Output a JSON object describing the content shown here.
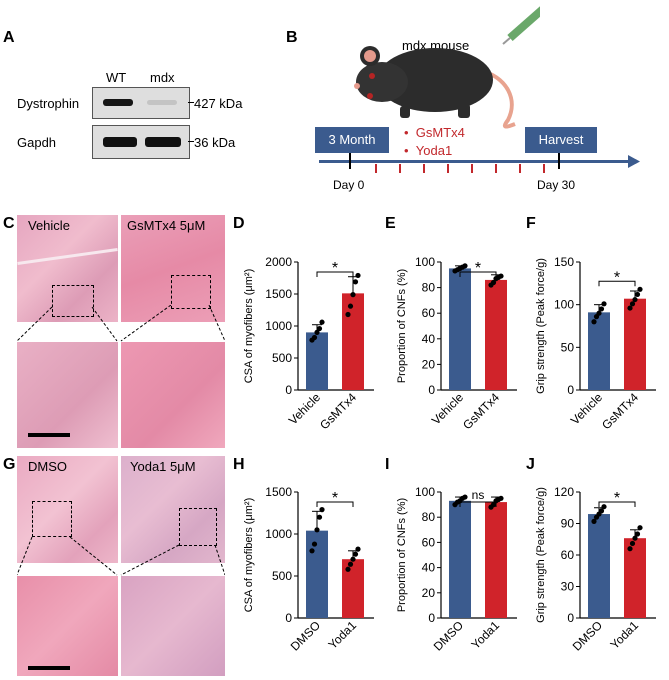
{
  "panels": {
    "A": "A",
    "B": "B",
    "C": "C",
    "D": "D",
    "E": "E",
    "F": "F",
    "G": "G",
    "H": "H",
    "I": "I",
    "J": "J"
  },
  "blot": {
    "lanes": [
      "WT",
      "mdx"
    ],
    "rows": [
      {
        "protein": "Dystrophin",
        "size": "427 kDa"
      },
      {
        "protein": "Gapdh",
        "size": "36 kDa"
      }
    ]
  },
  "schematic": {
    "mouse_label": "mdx mouse",
    "start": "3 Month",
    "end": "Harvest",
    "drugs": [
      "GsMTx4",
      "Yoda1"
    ],
    "day_start": "Day 0",
    "day_end": "Day 30"
  },
  "histology": {
    "C": {
      "left": "Vehicle",
      "right": "GsMTx4 5μM"
    },
    "G": {
      "left": "DMSO",
      "right": "Yoda1 5μM"
    }
  },
  "colors": {
    "control": "#3b5b8e",
    "treated": "#d0232a",
    "timeline": "#3b5b8e",
    "drug_text": "#c2282c"
  },
  "chart_data": [
    {
      "id": "D",
      "type": "bar",
      "categories": [
        "Vehicle",
        "GsMTx4"
      ],
      "values": [
        900,
        1510
      ],
      "errors": [
        120,
        260
      ],
      "points": [
        [
          780,
          820,
          900,
          960,
          1060
        ],
        [
          1180,
          1310,
          1490,
          1690,
          1790
        ]
      ],
      "ylabel": "CSA of myofibers (μm²)",
      "ylim": [
        0,
        2000
      ],
      "yticks": [
        0,
        500,
        1000,
        1500,
        2000
      ],
      "sig": "*"
    },
    {
      "id": "E",
      "type": "bar",
      "categories": [
        "Vehicle",
        "GsMTx4"
      ],
      "values": [
        95,
        86
      ],
      "errors": [
        2,
        4
      ],
      "points": [
        [
          93,
          94,
          95,
          96,
          97
        ],
        [
          82,
          84,
          87,
          88,
          89
        ]
      ],
      "ylabel": "Proportion of CNFs (%)",
      "ylim": [
        0,
        100
      ],
      "yticks": [
        0,
        20,
        40,
        60,
        80,
        100
      ],
      "sig": "*"
    },
    {
      "id": "F",
      "type": "bar",
      "categories": [
        "Vehicle",
        "GsMTx4"
      ],
      "values": [
        91,
        107
      ],
      "errors": [
        9,
        9
      ],
      "points": [
        [
          80,
          86,
          90,
          95,
          101
        ],
        [
          96,
          101,
          106,
          112,
          118
        ]
      ],
      "ylabel": "Grip strength (Peak force/g)",
      "ylim": [
        0,
        150
      ],
      "yticks": [
        0,
        50,
        100,
        150
      ],
      "sig": "*"
    },
    {
      "id": "H",
      "type": "bar",
      "categories": [
        "DMSO",
        "Yoda1"
      ],
      "values": [
        1040,
        700
      ],
      "errors": [
        230,
        100
      ],
      "points": [
        [
          800,
          880,
          1050,
          1200,
          1290
        ],
        [
          580,
          640,
          700,
          760,
          820
        ]
      ],
      "ylabel": "CSA of myofibers (μm²)",
      "ylim": [
        0,
        1500
      ],
      "yticks": [
        0,
        500,
        1000,
        1500
      ],
      "sig": "*"
    },
    {
      "id": "I",
      "type": "bar",
      "categories": [
        "DMSO",
        "Yoda1"
      ],
      "values": [
        93,
        92
      ],
      "errors": [
        3,
        4
      ],
      "points": [
        [
          90,
          92,
          93,
          95,
          96
        ],
        [
          88,
          90,
          93,
          94,
          95
        ]
      ],
      "ylabel": "Proportion of CNFs (%)",
      "ylim": [
        0,
        100
      ],
      "yticks": [
        0,
        20,
        40,
        60,
        80,
        100
      ],
      "sig": "ns"
    },
    {
      "id": "J",
      "type": "bar",
      "categories": [
        "DMSO",
        "Yoda1"
      ],
      "values": [
        99,
        76
      ],
      "errors": [
        6,
        8
      ],
      "points": [
        [
          92,
          96,
          99,
          102,
          106
        ],
        [
          66,
          71,
          76,
          80,
          86
        ]
      ],
      "ylabel": "Grip strength (Peak force/g)",
      "ylim": [
        0,
        120
      ],
      "yticks": [
        0,
        30,
        60,
        90,
        120
      ],
      "sig": "*"
    }
  ]
}
